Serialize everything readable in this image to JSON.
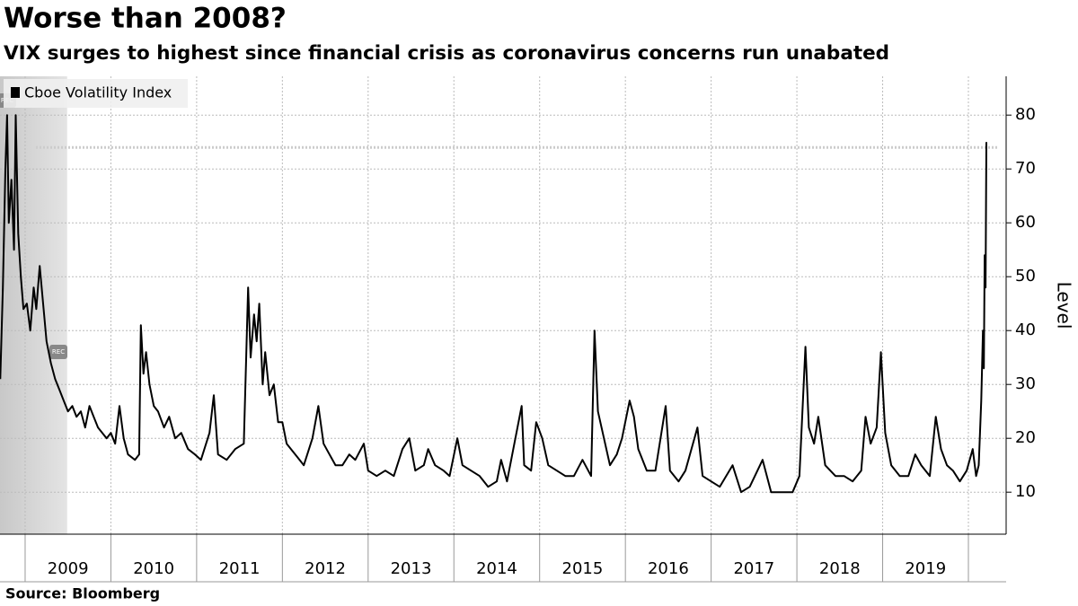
{
  "chart_data": {
    "type": "line",
    "title": "Worse than 2008?",
    "subtitle": "VIX surges to highest since financial crisis as coronavirus concerns run unabated",
    "source": "Source: Bloomberg",
    "y_axis_label": "Level",
    "recession_label": "REC",
    "recession_end": 2009.49,
    "reference_value": 74,
    "xlim": [
      2008.707,
      2020.44
    ],
    "xticks": [
      2009,
      2010,
      2011,
      2012,
      2013,
      2014,
      2015,
      2016,
      2017,
      2018,
      2019,
      2020
    ],
    "x_labels": [
      "2009",
      "2010",
      "2011",
      "2012",
      "2013",
      "2014",
      "2015",
      "2016",
      "2017",
      "2018",
      "2019"
    ],
    "ylim": [
      2.2,
      87.2
    ],
    "yticks": [
      10,
      20,
      30,
      40,
      50,
      60,
      70,
      80
    ],
    "grid": true,
    "legend": "top-left",
    "series": [
      {
        "name": "Cboe Volatility Index",
        "color": "#000000",
        "x": [
          2008.71,
          2008.74,
          2008.77,
          2008.79,
          2008.81,
          2008.84,
          2008.87,
          2008.89,
          2008.92,
          2008.95,
          2008.98,
          2009.02,
          2009.06,
          2009.1,
          2009.13,
          2009.17,
          2009.21,
          2009.25,
          2009.3,
          2009.35,
          2009.4,
          2009.45,
          2009.5,
          2009.55,
          2009.6,
          2009.65,
          2009.7,
          2009.75,
          2009.8,
          2009.85,
          2009.9,
          2009.95,
          2010.0,
          2010.05,
          2010.1,
          2010.15,
          2010.2,
          2010.28,
          2010.33,
          2010.35,
          2010.38,
          2010.41,
          2010.45,
          2010.5,
          2010.55,
          2010.62,
          2010.68,
          2010.75,
          2010.82,
          2010.9,
          2010.98,
          2011.05,
          2011.15,
          2011.2,
          2011.25,
          2011.35,
          2011.45,
          2011.55,
          2011.6,
          2011.63,
          2011.67,
          2011.7,
          2011.73,
          2011.77,
          2011.8,
          2011.85,
          2011.9,
          2011.95,
          2012.0,
          2012.05,
          2012.15,
          2012.25,
          2012.35,
          2012.42,
          2012.48,
          2012.55,
          2012.62,
          2012.7,
          2012.78,
          2012.85,
          2012.95,
          2013.0,
          2013.1,
          2013.2,
          2013.3,
          2013.4,
          2013.48,
          2013.55,
          2013.65,
          2013.7,
          2013.78,
          2013.88,
          2013.95,
          2014.04,
          2014.1,
          2014.2,
          2014.3,
          2014.4,
          2014.5,
          2014.55,
          2014.62,
          2014.79,
          2014.82,
          2014.9,
          2014.96,
          2015.03,
          2015.1,
          2015.2,
          2015.3,
          2015.4,
          2015.5,
          2015.6,
          2015.64,
          2015.68,
          2015.75,
          2015.82,
          2015.9,
          2015.96,
          2016.05,
          2016.1,
          2016.15,
          2016.25,
          2016.35,
          2016.47,
          2016.52,
          2016.62,
          2016.7,
          2016.84,
          2016.9,
          2017.0,
          2017.1,
          2017.25,
          2017.35,
          2017.45,
          2017.6,
          2017.7,
          2017.85,
          2017.95,
          2018.03,
          2018.1,
          2018.14,
          2018.2,
          2018.25,
          2018.33,
          2018.45,
          2018.55,
          2018.65,
          2018.75,
          2018.8,
          2018.86,
          2018.93,
          2018.98,
          2019.03,
          2019.1,
          2019.2,
          2019.3,
          2019.38,
          2019.45,
          2019.55,
          2019.62,
          2019.68,
          2019.75,
          2019.82,
          2019.9,
          2019.98,
          2020.05,
          2020.09,
          2020.12,
          2020.15,
          2020.17,
          2020.18,
          2020.19,
          2020.2,
          2020.21
        ],
        "values": [
          31,
          48,
          70,
          80,
          60,
          68,
          55,
          80,
          58,
          50,
          44,
          45,
          40,
          48,
          44,
          52,
          45,
          38,
          34,
          31,
          29,
          27,
          25,
          26,
          24,
          25,
          22,
          26,
          24,
          22,
          21,
          20,
          21,
          19,
          26,
          20,
          17,
          16,
          17,
          41,
          32,
          36,
          30,
          26,
          25,
          22,
          24,
          20,
          21,
          18,
          17,
          16,
          21,
          28,
          17,
          16,
          18,
          19,
          48,
          35,
          43,
          38,
          45,
          30,
          36,
          28,
          30,
          23,
          23,
          19,
          17,
          15,
          20,
          26,
          19,
          17,
          15,
          15,
          17,
          16,
          19,
          14,
          13,
          14,
          13,
          18,
          20,
          14,
          15,
          18,
          15,
          14,
          13,
          20,
          15,
          14,
          13,
          11,
          12,
          16,
          12,
          26,
          15,
          14,
          23,
          20,
          15,
          14,
          13,
          13,
          16,
          13,
          40,
          25,
          20,
          15,
          17,
          20,
          27,
          24,
          18,
          14,
          14,
          26,
          14,
          12,
          14,
          22,
          13,
          12,
          11,
          15,
          10,
          11,
          16,
          10,
          10,
          10,
          13,
          37,
          22,
          19,
          24,
          15,
          13,
          13,
          12,
          14,
          24,
          19,
          22,
          36,
          21,
          15,
          13,
          13,
          17,
          15,
          13,
          24,
          18,
          15,
          14,
          12,
          14,
          18,
          13,
          15,
          27,
          40,
          33,
          54,
          48,
          75
        ]
      }
    ]
  }
}
